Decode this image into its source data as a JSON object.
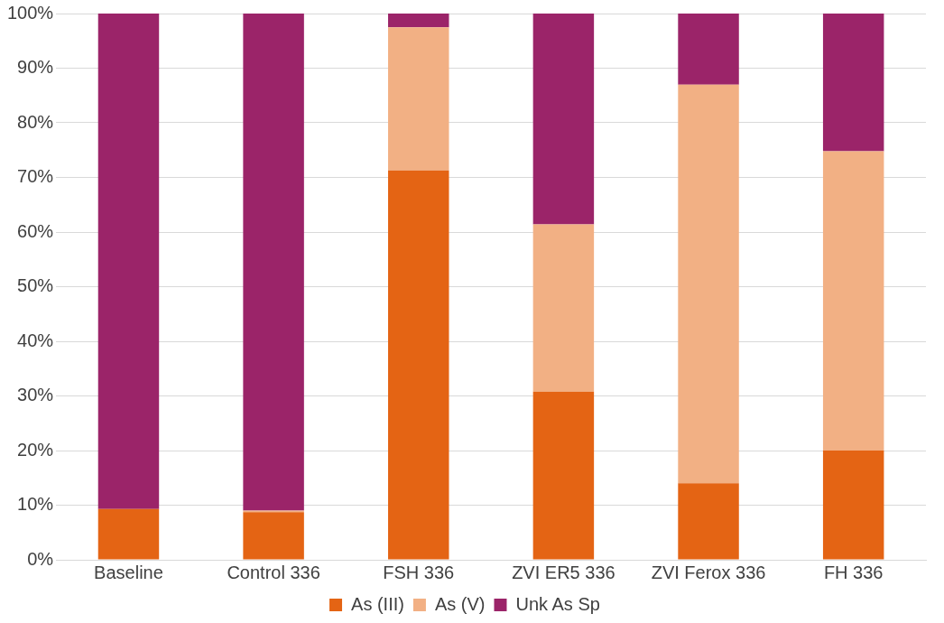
{
  "chart_data": {
    "type": "bar",
    "stacked": true,
    "categories": [
      "Baseline",
      "Control 336",
      "FSH 336",
      "ZVI ER5 336",
      "ZVI Ferox 336",
      "FH 336"
    ],
    "series": [
      {
        "name": "As (III)",
        "color": "#e46414",
        "values": [
          9.3,
          8.7,
          71.3,
          30.8,
          14,
          20
        ]
      },
      {
        "name": "As (V)",
        "color": "#f2b084",
        "values": [
          0,
          0.3,
          26.2,
          30.6,
          73,
          54.8
        ]
      },
      {
        "name": "Unk As Sp",
        "color": "#9b2469",
        "values": [
          90.7,
          91,
          2.5,
          38.6,
          13,
          25.2
        ]
      }
    ],
    "ylim": [
      0,
      100
    ],
    "yticks": [
      {
        "value": 0,
        "label": "0%"
      },
      {
        "value": 10,
        "label": "10%"
      },
      {
        "value": 20,
        "label": "20%"
      },
      {
        "value": 30,
        "label": "30%"
      },
      {
        "value": 40,
        "label": "40%"
      },
      {
        "value": 50,
        "label": "50%"
      },
      {
        "value": 60,
        "label": "60%"
      },
      {
        "value": 70,
        "label": "70%"
      },
      {
        "value": 80,
        "label": "80%"
      },
      {
        "value": 90,
        "label": "90%"
      },
      {
        "value": 100,
        "label": "100%"
      }
    ],
    "grid": "y",
    "legend": "bottom"
  }
}
